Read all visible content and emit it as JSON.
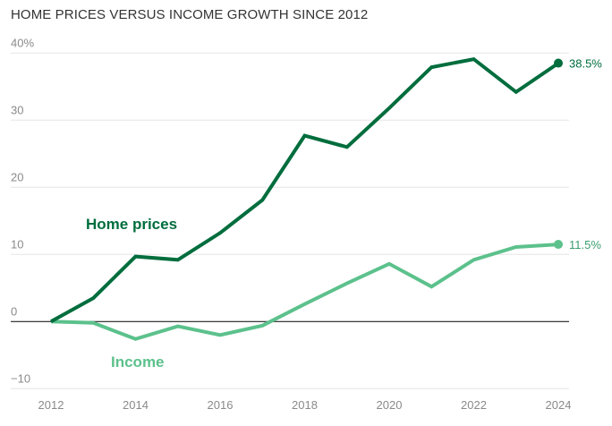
{
  "chart_data": {
    "type": "line",
    "title": "HOME PRICES VERSUS INCOME GROWTH SINCE 2012",
    "xlabel": "",
    "ylabel": "",
    "x": [
      2012,
      2013,
      2014,
      2015,
      2016,
      2017,
      2018,
      2019,
      2020,
      2021,
      2022,
      2023,
      2024
    ],
    "xticks": [
      "2012",
      "2014",
      "2016",
      "2018",
      "2020",
      "2022",
      "2024"
    ],
    "xtick_values": [
      2012,
      2014,
      2016,
      2018,
      2020,
      2022,
      2024
    ],
    "yticks": [
      "40%",
      "30",
      "20",
      "10",
      "0",
      "−10"
    ],
    "ytick_values": [
      40,
      30,
      20,
      10,
      0,
      -10
    ],
    "ylim": [
      -10,
      40
    ],
    "xlim": [
      2012,
      2024
    ],
    "grid": true,
    "series": [
      {
        "name": "Home prices",
        "color": "#006d3d",
        "values": [
          0,
          3.5,
          9.7,
          9.2,
          13.2,
          18.1,
          27.7,
          26.0,
          31.8,
          37.9,
          39.1,
          34.2,
          38.5
        ],
        "end_label": "38.5%"
      },
      {
        "name": "Income",
        "color": "#5cc18c",
        "values": [
          0,
          -0.2,
          -2.6,
          -0.7,
          -2.0,
          -0.6,
          2.6,
          5.7,
          8.6,
          5.2,
          9.2,
          11.1,
          11.5
        ],
        "end_label": "11.5%"
      }
    ]
  }
}
